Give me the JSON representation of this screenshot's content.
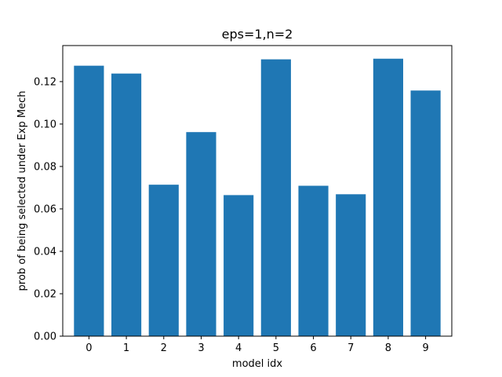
{
  "chart_data": {
    "type": "bar",
    "title": "eps=1,n=2",
    "xlabel": "model idx",
    "ylabel": "prob of being selected under Exp Mech",
    "categories": [
      "0",
      "1",
      "2",
      "3",
      "4",
      "5",
      "6",
      "7",
      "8",
      "9"
    ],
    "values": [
      0.1275,
      0.1238,
      0.0714,
      0.0962,
      0.0665,
      0.1305,
      0.0709,
      0.0669,
      0.1308,
      0.1158
    ],
    "ylim": [
      0,
      0.137
    ],
    "yticks": [
      "0.00",
      "0.02",
      "0.04",
      "0.06",
      "0.08",
      "0.10",
      "0.12"
    ],
    "bar_color": "#1f77b4",
    "grid": false,
    "legend": "none"
  }
}
